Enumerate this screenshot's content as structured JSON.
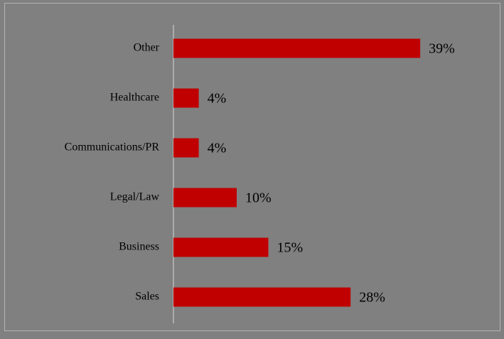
{
  "chart_data": {
    "type": "bar",
    "orientation": "horizontal",
    "categories": [
      "Other",
      "Healthcare",
      "Communications/PR",
      "Legal/Law",
      "Business",
      "Sales"
    ],
    "values": [
      39,
      4,
      4,
      10,
      15,
      28
    ],
    "value_labels": [
      "39%",
      "4%",
      "4%",
      "10%",
      "15%",
      "28%"
    ],
    "color": "#c00000"
  }
}
